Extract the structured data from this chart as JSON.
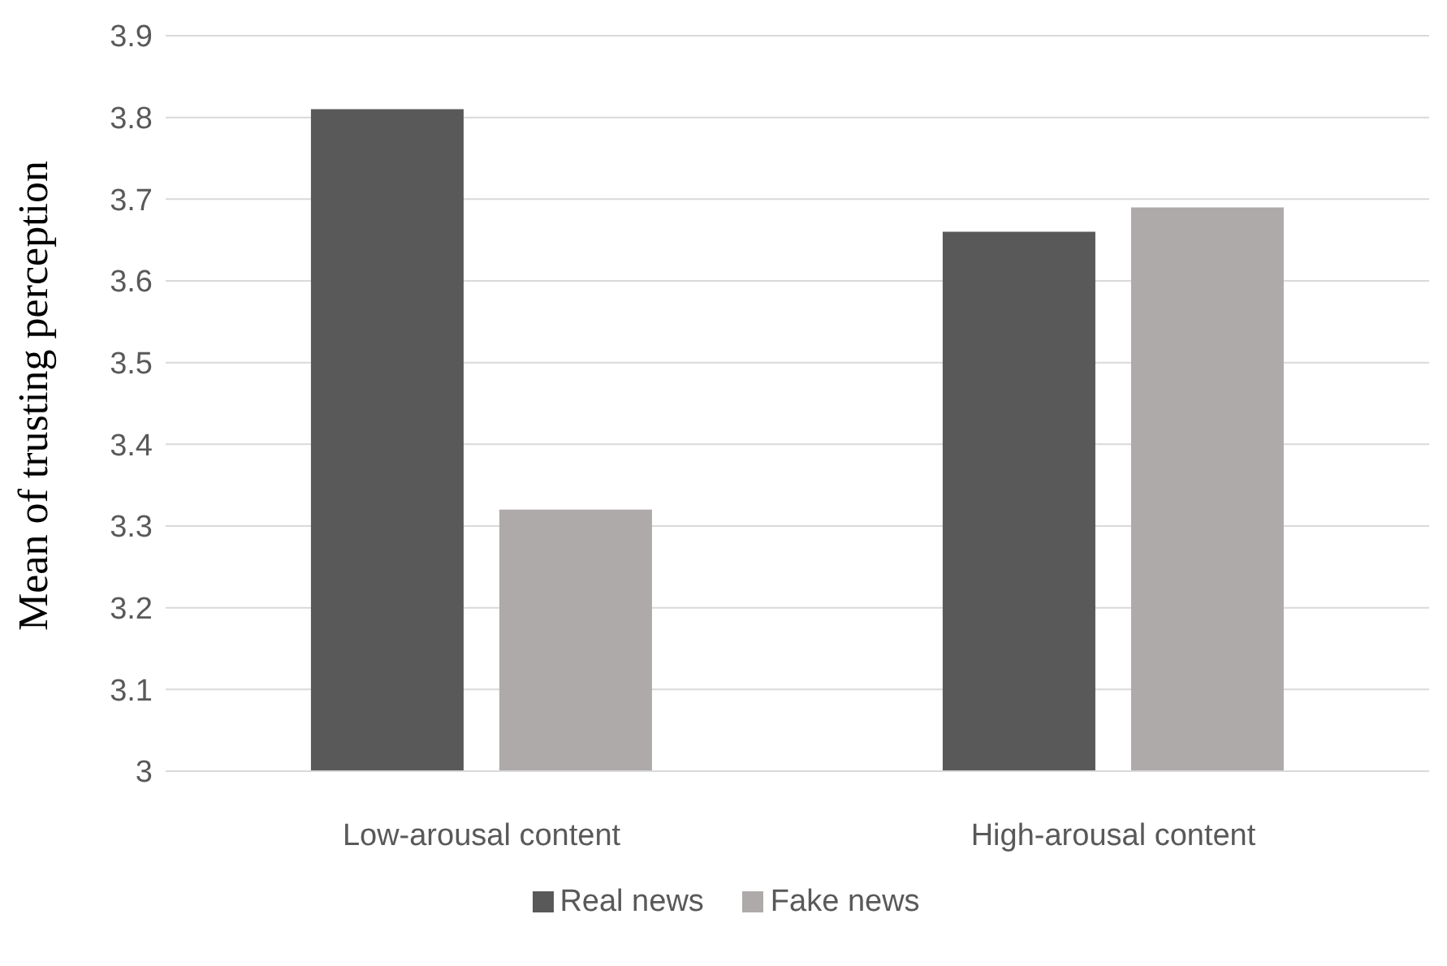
{
  "chart_data": {
    "type": "bar",
    "ylabel": "Mean of trusting perception",
    "categories": [
      "Low-arousal content",
      "High-arousal content"
    ],
    "series": [
      {
        "name": "Real news",
        "color": "#595959",
        "values": [
          3.81,
          3.66
        ]
      },
      {
        "name": "Fake news",
        "color": "#aeaaaa",
        "values": [
          3.32,
          3.69
        ]
      }
    ],
    "ylim": [
      3,
      3.9
    ],
    "yticks": [
      3,
      3.1,
      3.2,
      3.3,
      3.4,
      3.5,
      3.6,
      3.7,
      3.8,
      3.9
    ],
    "grid": "y",
    "legend": "bottom"
  }
}
